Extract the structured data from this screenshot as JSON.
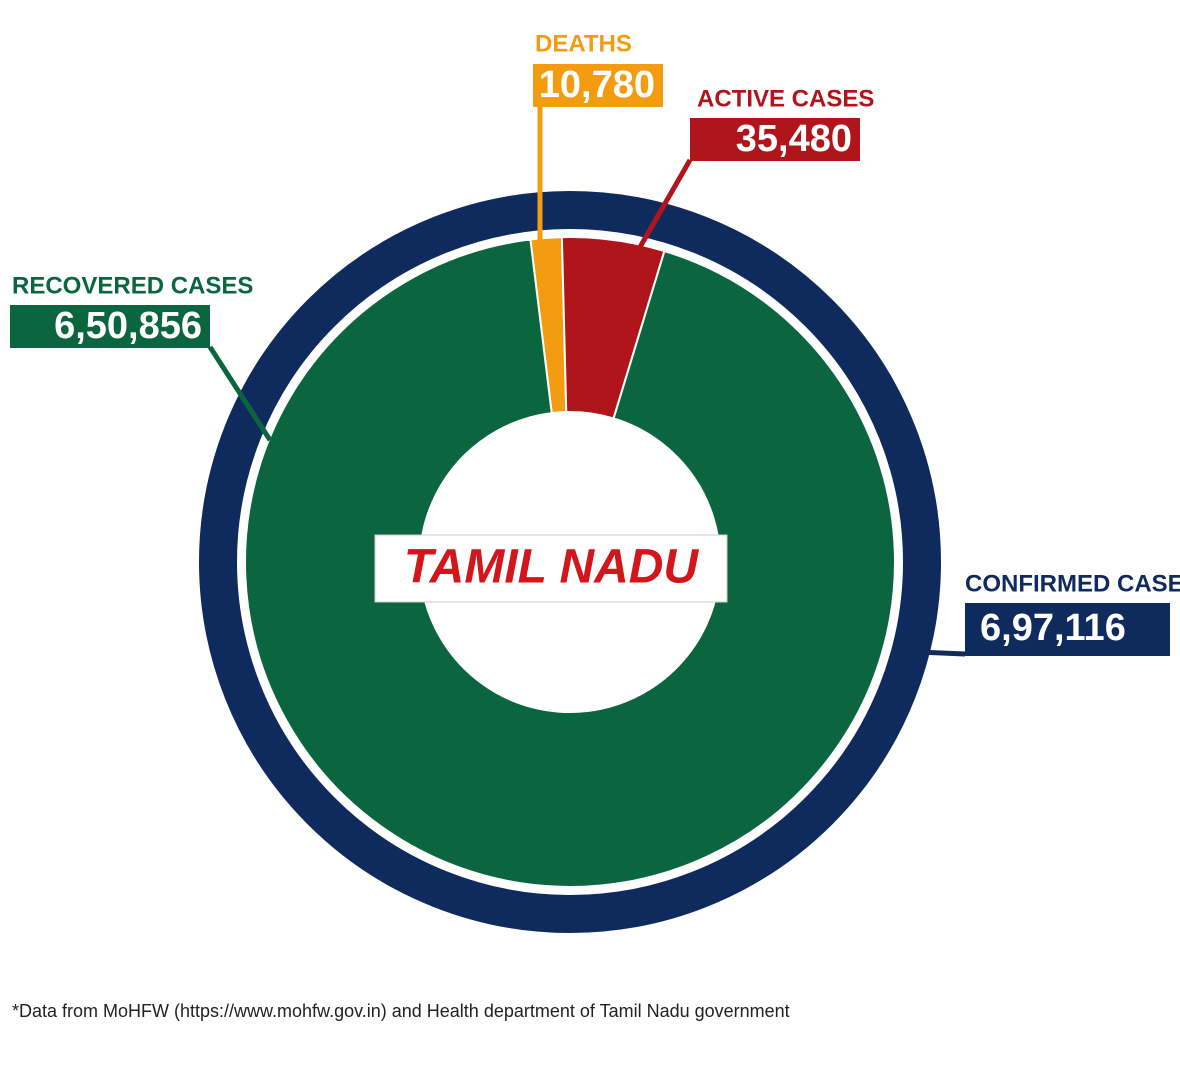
{
  "chart_data": {
    "type": "donut",
    "center_label": "TAMIL NADU",
    "total": {
      "name": "CONFIRMED CASES",
      "value": 697116,
      "value_label": "6,97,116",
      "color": "#0f2a5c"
    },
    "categories": [
      "DEATHS",
      "ACTIVE CASES",
      "RECOVERED CASES"
    ],
    "values": [
      10780,
      35480,
      650856
    ],
    "value_labels": [
      "10,780",
      "35,480",
      "6,50,856"
    ],
    "colors": [
      "#f39c12",
      "#b0151b",
      "#0b6640"
    ]
  },
  "footnote": "*Data from MoHFW (https://www.mohfw.gov.in) and Health department of Tamil Nadu government"
}
